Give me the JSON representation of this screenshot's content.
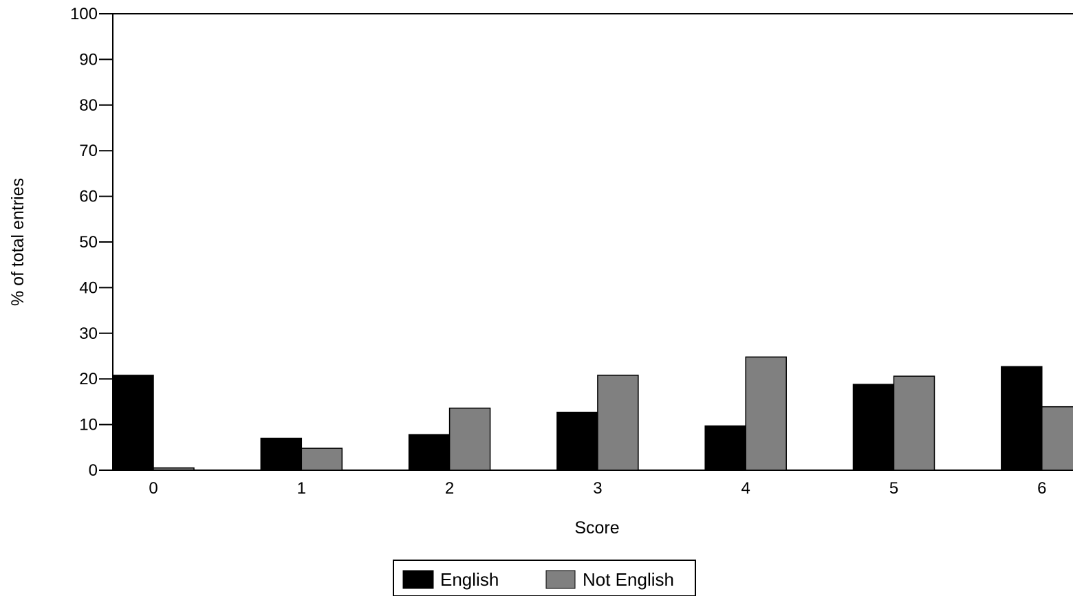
{
  "chart_data": {
    "type": "bar",
    "categories": [
      "0",
      "1",
      "2",
      "3",
      "4",
      "5",
      "6"
    ],
    "series": [
      {
        "name": "English",
        "color": "#000000",
        "values": [
          20.8,
          7.0,
          7.8,
          12.7,
          9.7,
          18.8,
          22.7
        ]
      },
      {
        "name": "Not English",
        "color": "#808080",
        "values": [
          0.5,
          4.8,
          13.6,
          20.8,
          24.8,
          20.6,
          13.9
        ]
      }
    ],
    "xlabel": "Score",
    "ylabel": "% of total entries",
    "ylim": [
      0,
      100
    ],
    "yticks": [
      0,
      10,
      20,
      30,
      40,
      50,
      60,
      70,
      80,
      90,
      100
    ],
    "grid": false,
    "legend_position": "bottom-center"
  }
}
